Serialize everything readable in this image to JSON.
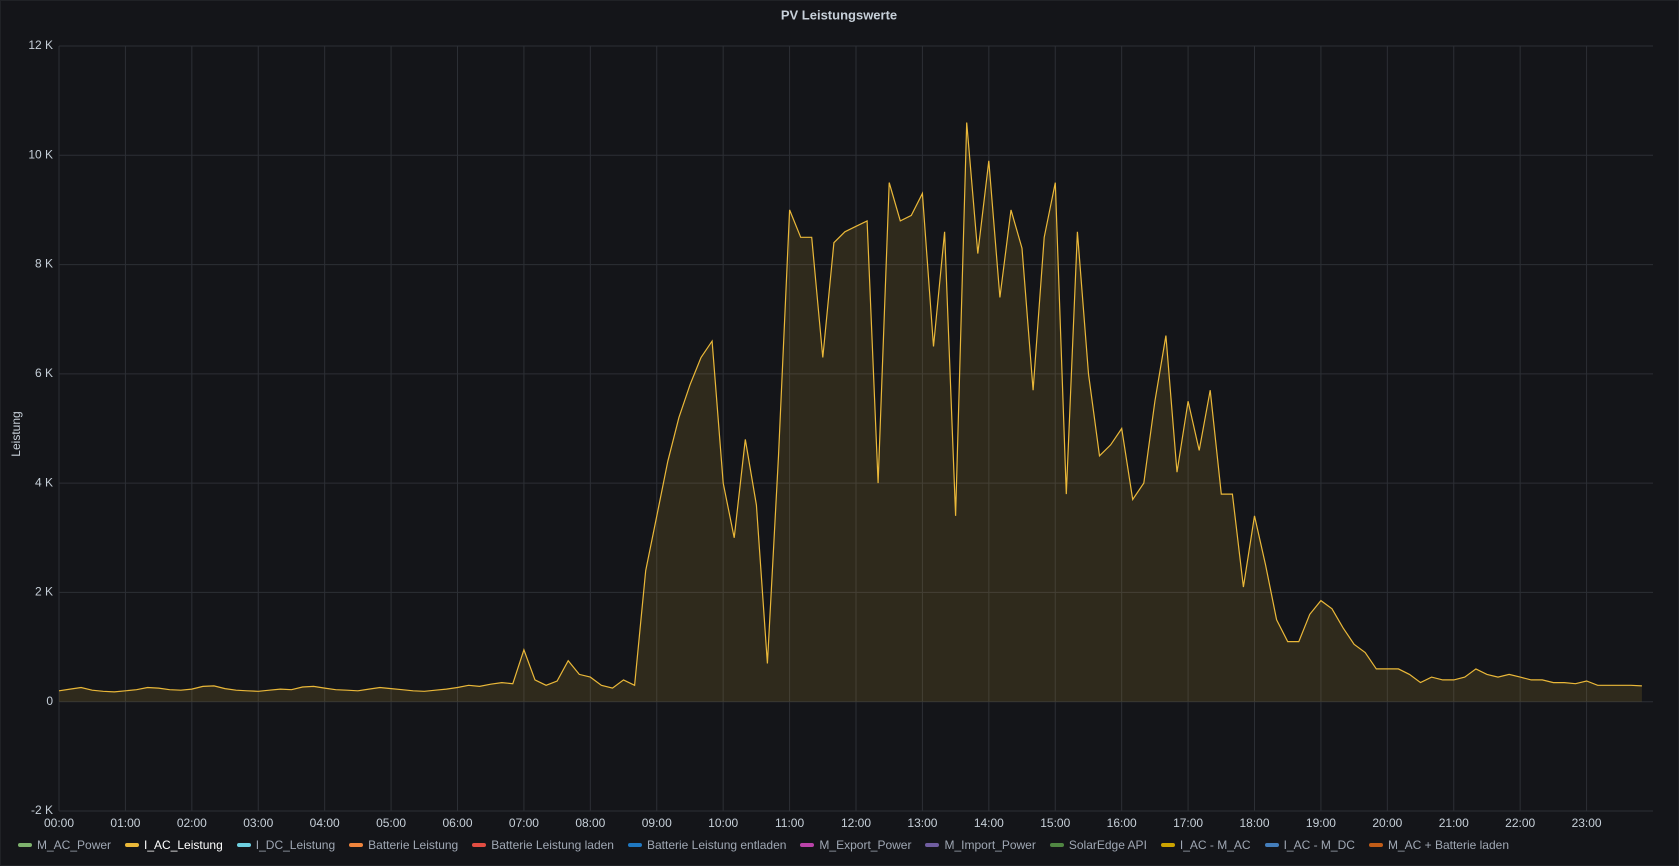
{
  "chart_data": {
    "type": "line",
    "title": "PV Leistungswerte",
    "y_label": "Leistung",
    "xlim": [
      0,
      1440
    ],
    "xticks": [
      {
        "value": 0,
        "label": "00:00"
      },
      {
        "value": 60,
        "label": "01:00"
      },
      {
        "value": 120,
        "label": "02:00"
      },
      {
        "value": 180,
        "label": "03:00"
      },
      {
        "value": 240,
        "label": "04:00"
      },
      {
        "value": 300,
        "label": "05:00"
      },
      {
        "value": 360,
        "label": "06:00"
      },
      {
        "value": 420,
        "label": "07:00"
      },
      {
        "value": 480,
        "label": "08:00"
      },
      {
        "value": 540,
        "label": "09:00"
      },
      {
        "value": 600,
        "label": "10:00"
      },
      {
        "value": 660,
        "label": "11:00"
      },
      {
        "value": 720,
        "label": "12:00"
      },
      {
        "value": 780,
        "label": "13:00"
      },
      {
        "value": 840,
        "label": "14:00"
      },
      {
        "value": 900,
        "label": "15:00"
      },
      {
        "value": 960,
        "label": "16:00"
      },
      {
        "value": 1020,
        "label": "17:00"
      },
      {
        "value": 1080,
        "label": "18:00"
      },
      {
        "value": 1140,
        "label": "19:00"
      },
      {
        "value": 1200,
        "label": "20:00"
      },
      {
        "value": 1260,
        "label": "21:00"
      },
      {
        "value": 1320,
        "label": "22:00"
      },
      {
        "value": 1380,
        "label": "23:00"
      }
    ],
    "ylim": [
      -2000,
      12000
    ],
    "yticks": [
      {
        "value": -2000,
        "label": "-2 K"
      },
      0,
      {
        "value": 2000,
        "label": "2 K"
      },
      {
        "value": 4000,
        "label": "4 K"
      },
      {
        "value": 6000,
        "label": "6 K"
      },
      {
        "value": 8000,
        "label": "8 K"
      },
      {
        "value": 10000,
        "label": "10 K"
      },
      {
        "value": 12000,
        "label": "12 K"
      }
    ],
    "grid": true,
    "x": [
      0,
      10,
      20,
      30,
      40,
      50,
      60,
      70,
      80,
      90,
      100,
      110,
      120,
      130,
      140,
      150,
      160,
      170,
      180,
      190,
      200,
      210,
      220,
      230,
      240,
      250,
      260,
      270,
      280,
      290,
      300,
      310,
      320,
      330,
      340,
      350,
      360,
      370,
      380,
      390,
      400,
      410,
      420,
      430,
      440,
      450,
      460,
      470,
      480,
      490,
      500,
      510,
      520,
      530,
      540,
      550,
      560,
      570,
      580,
      590,
      600,
      610,
      620,
      630,
      640,
      650,
      660,
      670,
      680,
      690,
      700,
      710,
      720,
      730,
      740,
      750,
      760,
      770,
      780,
      790,
      800,
      810,
      820,
      830,
      840,
      850,
      860,
      870,
      880,
      890,
      900,
      910,
      920,
      930,
      940,
      950,
      960,
      970,
      980,
      990,
      1000,
      1010,
      1020,
      1030,
      1040,
      1050,
      1060,
      1070,
      1080,
      1090,
      1100,
      1110,
      1120,
      1130,
      1140,
      1150,
      1160,
      1170,
      1180,
      1190,
      1200,
      1210,
      1220,
      1230,
      1240,
      1250,
      1260,
      1270,
      1280,
      1290,
      1300,
      1310,
      1320,
      1330,
      1340,
      1350,
      1360,
      1370,
      1380,
      1390,
      1400,
      1410,
      1420,
      1430
    ],
    "series": [
      {
        "name": "M_AC_Power",
        "color": "#7EB26D"
      },
      {
        "name": "I_AC_Leistung",
        "color": "#EAB839",
        "values": [
          200,
          230,
          260,
          210,
          190,
          180,
          200,
          220,
          260,
          250,
          220,
          210,
          230,
          280,
          290,
          240,
          210,
          200,
          190,
          210,
          230,
          220,
          270,
          280,
          250,
          220,
          210,
          200,
          230,
          260,
          240,
          220,
          200,
          190,
          210,
          230,
          260,
          300,
          280,
          320,
          350,
          330,
          950,
          400,
          300,
          380,
          750,
          500,
          450,
          300,
          250,
          400,
          300,
          2400,
          3400,
          4400,
          5200,
          5800,
          6300,
          6600,
          4000,
          3000,
          4800,
          3600,
          700,
          4500,
          9000,
          8500,
          8500,
          6300,
          8400,
          8600,
          8700,
          8800,
          4000,
          9500,
          8800,
          8900,
          9300,
          6500,
          8600,
          3400,
          10600,
          8200,
          9900,
          7400,
          9000,
          8300,
          5700,
          8500,
          9500,
          3800,
          8600,
          6000,
          4500,
          4700,
          5000,
          3700,
          4000,
          5500,
          6700,
          4200,
          5500,
          4600,
          5700,
          3800,
          3800,
          2100,
          3400,
          2500,
          1500,
          1100,
          1100,
          1600,
          1850,
          1700,
          1350,
          1050,
          900,
          600,
          600,
          600,
          500,
          350,
          450,
          400,
          400,
          450,
          600,
          500,
          450,
          500,
          450,
          400,
          400,
          350,
          350,
          330,
          380,
          300,
          300,
          300,
          300,
          290
        ]
      },
      {
        "name": "I_DC_Leistung",
        "color": "#6ED0E0"
      },
      {
        "name": "Batterie Leistung",
        "color": "#EF843C"
      },
      {
        "name": "Batterie Leistung laden",
        "color": "#E24D42"
      },
      {
        "name": "Batterie Leistung entladen",
        "color": "#1F78C1"
      },
      {
        "name": "M_Export_Power",
        "color": "#BA43A9"
      },
      {
        "name": "M_Import_Power",
        "color": "#705DA0"
      },
      {
        "name": "SolarEdge API",
        "color": "#508642"
      },
      {
        "name": "I_AC - M_AC",
        "color": "#CCA300"
      },
      {
        "name": "I_AC - M_DC",
        "color": "#447EBC"
      },
      {
        "name": "M_AC + Batterie laden",
        "color": "#C15C17"
      }
    ]
  }
}
